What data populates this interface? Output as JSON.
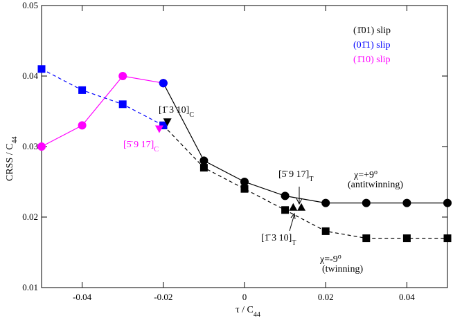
{
  "chart_data": {
    "type": "line",
    "x_label": {
      "text": "τ / C",
      "sub": "44"
    },
    "y_label": {
      "text": "CRSS / C",
      "sub": "44"
    },
    "xlim": [
      -0.05,
      0.05
    ],
    "xticks": [
      -0.04,
      -0.02,
      0,
      0.02,
      0.04
    ],
    "ylim": [
      0.01,
      0.05
    ],
    "yticks": [
      0.01,
      0.02,
      0.03,
      0.04,
      0.05
    ],
    "series": [
      {
        "color": "#ff00ff",
        "marker": "circle",
        "line": "solid",
        "x": [
          -0.05,
          -0.04,
          -0.03,
          -0.02
        ],
        "values": [
          0.03,
          0.033,
          0.04,
          0.039
        ]
      },
      {
        "color": "#0000ff",
        "marker": "square",
        "line": "dashed",
        "x": [
          -0.05,
          -0.04,
          -0.03,
          -0.02
        ],
        "values": [
          0.041,
          0.038,
          0.036,
          0.033
        ]
      },
      {
        "color": "#000000",
        "marker": "circle",
        "line": "solid",
        "x": [
          -0.02,
          -0.01,
          0,
          0.01,
          0.02,
          0.03,
          0.04,
          0.05
        ],
        "values": [
          0.039,
          0.028,
          0.025,
          0.023,
          0.022,
          0.022,
          0.022,
          0.022
        ]
      },
      {
        "color": "#000000",
        "marker": "square",
        "line": "dashed",
        "x": [
          -0.02,
          -0.01,
          0,
          0.01,
          0.02,
          0.03,
          0.04,
          0.05
        ],
        "values": [
          0.033,
          0.027,
          0.024,
          0.021,
          0.018,
          0.017,
          0.017,
          0.017
        ]
      },
      {
        "color": "#0000ff",
        "marker": "circle",
        "line": "none",
        "x": [
          -0.02
        ],
        "values": [
          0.039
        ]
      },
      {
        "color": "#0000ff",
        "marker": "square",
        "line": "none",
        "x": [
          -0.02
        ],
        "values": [
          0.033
        ]
      },
      {
        "color": "#000000",
        "marker": "triangle-down",
        "line": "none",
        "x": [
          -0.019
        ],
        "values": [
          0.0335
        ]
      },
      {
        "color": "#ff00ff",
        "marker": "triangle-down",
        "line": "none",
        "x": [
          -0.021
        ],
        "values": [
          0.0325
        ]
      },
      {
        "color": "#000000",
        "marker": "triangle-up",
        "line": "none",
        "x": [
          0.012,
          0.014
        ],
        "values": [
          0.0214,
          0.0214
        ]
      }
    ],
    "annotations": [
      {
        "text": "(1̄01) slip",
        "color": "#000000"
      },
      {
        "text": "(01̄1) slip",
        "color": "#0000ff"
      },
      {
        "text": "(1̄10) slip",
        "color": "#ff00ff"
      },
      {
        "text": "[1̄ 3 10]",
        "sub": "C",
        "color": "#000000"
      },
      {
        "text": "[5̄ 9 17]",
        "sub": "C",
        "color": "#ff00ff"
      },
      {
        "text": "[5̄ 9 17]",
        "sub": "T",
        "color": "#000000"
      },
      {
        "text": "[1̄ 3 10]",
        "sub": "T",
        "color": "#000000"
      },
      {
        "text": "χ=+9",
        "sup": "o",
        "color": "#000000"
      },
      {
        "text": "(antitwinning)",
        "color": "#000000"
      },
      {
        "text": "χ=-9",
        "sup": "o",
        "color": "#000000"
      },
      {
        "text": "(twinning)",
        "color": "#000000"
      }
    ]
  }
}
